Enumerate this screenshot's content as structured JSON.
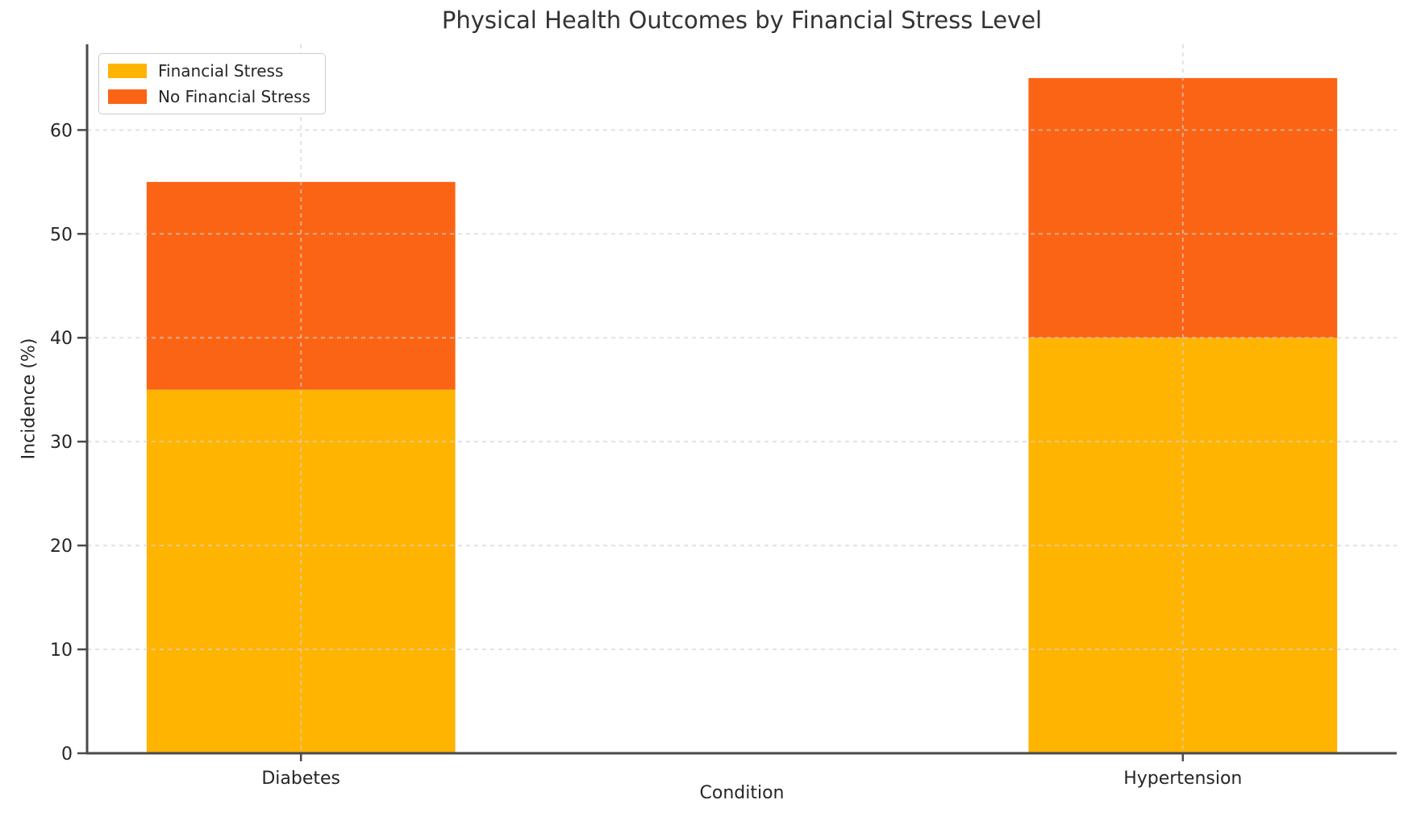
{
  "figure": {
    "background_color": "#ffffff",
    "axis_color": "#4a4a4a",
    "text_color": "#262626",
    "title_color": "#333333",
    "grid_color": "#d2d2d2"
  },
  "chart_data": {
    "type": "bar",
    "stacked": true,
    "title": "Physical Health Outcomes by Financial Stress Level",
    "xlabel": "Condition",
    "ylabel": "Incidence (%)",
    "categories": [
      "Diabetes",
      "Hypertension"
    ],
    "series": [
      {
        "name": "Financial Stress",
        "color": "#FFB402",
        "values": [
          35,
          40
        ]
      },
      {
        "name": "No Financial Stress",
        "color": "#FA6414",
        "values": [
          20,
          25
        ]
      }
    ],
    "stacked_totals": [
      55,
      65
    ],
    "yticks": [
      0,
      10,
      20,
      30,
      40,
      50,
      60
    ],
    "ylim": [
      0,
      68.25
    ],
    "xlim": [
      -0.2425,
      1.2425
    ],
    "bar_width": 0.35,
    "grid": {
      "horizontal": true,
      "vertical": true,
      "style": "dashed"
    },
    "legend": {
      "position": "upper-left",
      "entries": [
        "Financial Stress",
        "No Financial Stress"
      ]
    }
  }
}
